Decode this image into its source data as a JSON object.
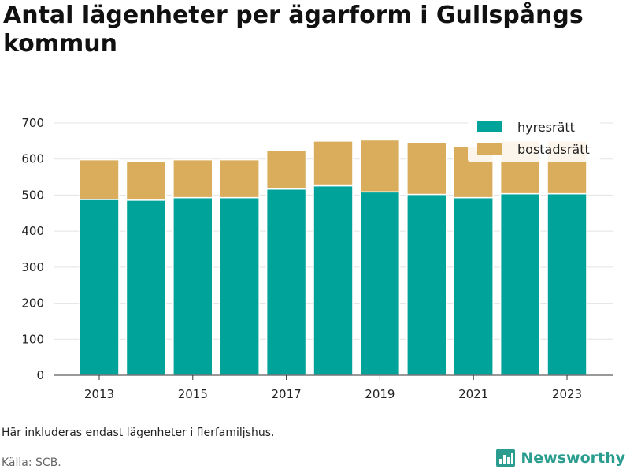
{
  "title": "Antal lägenheter per ägarform i Gullspångs kommun",
  "note": "Här inkluderas endast lägenheter i flerfamiljshus.",
  "source": "Källa: SCB.",
  "brand": "Newsworthy",
  "colors": {
    "hyresratt": "#00a39a",
    "bostadsratt": "#d9ad5b",
    "grid": "#e3e3e3",
    "brand": "#2a9d8f"
  },
  "chart_data": {
    "type": "bar",
    "stacked": true,
    "x": [
      2013,
      2014,
      2015,
      2016,
      2017,
      2018,
      2019,
      2020,
      2021,
      2022,
      2023
    ],
    "series": [
      {
        "name": "hyresrätt",
        "values": [
          488,
          486,
          493,
          493,
          517,
          526,
          509,
          502,
          493,
          504,
          504
        ]
      },
      {
        "name": "bostadsrätt",
        "values": [
          110,
          108,
          105,
          105,
          107,
          124,
          144,
          144,
          142,
          146,
          146
        ]
      }
    ],
    "y_ticks": [
      0,
      100,
      200,
      300,
      400,
      500,
      600,
      700
    ],
    "x_ticks": [
      2013,
      2015,
      2017,
      2019,
      2021,
      2023
    ],
    "ylim": [
      0,
      700
    ],
    "grid": true,
    "legend_position": "top-right"
  }
}
